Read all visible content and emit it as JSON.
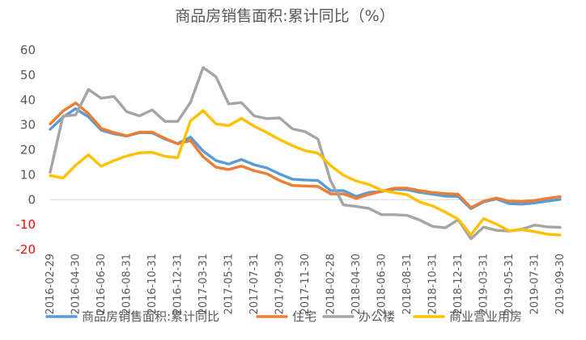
{
  "chart_data": {
    "type": "line",
    "title": "商品房销售面积:累计同比（%）",
    "xlabel": "",
    "ylabel": "",
    "ylim": [
      -20,
      60
    ],
    "yticks": [
      "60",
      "50",
      "40",
      "30",
      "20",
      "10",
      "0",
      "-10",
      "-20"
    ],
    "negative_tick_color": "#ff0000",
    "grid": false,
    "legend_position": "bottom",
    "x": [
      "2016-02",
      "2016-03",
      "2016-04",
      "2016-05",
      "2016-06",
      "2016-07",
      "2016-08",
      "2016-09",
      "2016-10",
      "2016-11",
      "2016-12",
      "2017-02",
      "2017-03",
      "2017-04",
      "2017-05",
      "2017-06",
      "2017-07",
      "2017-08",
      "2017-09",
      "2017-10",
      "2017-11",
      "2017-12",
      "2018-02",
      "2018-03",
      "2018-04",
      "2018-05",
      "2018-06",
      "2018-07",
      "2018-08",
      "2018-09",
      "2018-10",
      "2018-11",
      "2018-12",
      "2019-02",
      "2019-03",
      "2019-04",
      "2019-05",
      "2019-06",
      "2019-07",
      "2019-08",
      "2019-09"
    ],
    "xtick_labels": [
      {
        "index": 0,
        "label": "2016-02-29"
      },
      {
        "index": 2,
        "label": "2016-04-30"
      },
      {
        "index": 4,
        "label": "2016-06-30"
      },
      {
        "index": 6,
        "label": "2016-08-31"
      },
      {
        "index": 8,
        "label": "2016-10-31"
      },
      {
        "index": 10,
        "label": "2016-12-31"
      },
      {
        "index": 12,
        "label": "2017-03-31"
      },
      {
        "index": 14,
        "label": "2017-05-31"
      },
      {
        "index": 16,
        "label": "2017-07-31"
      },
      {
        "index": 18,
        "label": "2017-09-30"
      },
      {
        "index": 20,
        "label": "2017-11-30"
      },
      {
        "index": 22,
        "label": "2018-02-28"
      },
      {
        "index": 24,
        "label": "2018-04-30"
      },
      {
        "index": 26,
        "label": "2018-06-30"
      },
      {
        "index": 28,
        "label": "2018-08-31"
      },
      {
        "index": 30,
        "label": "2018-10-31"
      },
      {
        "index": 32,
        "label": "2018-12-31"
      },
      {
        "index": 34,
        "label": "2019-03-31"
      },
      {
        "index": 36,
        "label": "2019-05-31"
      },
      {
        "index": 38,
        "label": "2019-07-31"
      },
      {
        "index": 40,
        "label": "2019-09-30"
      }
    ],
    "series": [
      {
        "name": "商品房销售面积:累计同比",
        "color": "#5b9bd5",
        "values": [
          28.2,
          33.1,
          36.5,
          33.2,
          27.9,
          26.4,
          25.5,
          26.9,
          26.8,
          24.3,
          22.5,
          25.1,
          19.5,
          15.7,
          14.3,
          16.1,
          14.0,
          12.7,
          10.3,
          8.2,
          7.9,
          7.7,
          3.6,
          3.6,
          1.3,
          2.9,
          3.3,
          4.2,
          4.0,
          2.9,
          2.2,
          1.4,
          1.3,
          -3.6,
          -0.9,
          0.3,
          -1.6,
          -1.8,
          -1.3,
          -0.6,
          0.1
        ]
      },
      {
        "name": "住宅",
        "color": "#ed7d31",
        "values": [
          30.4,
          35.5,
          38.8,
          34.5,
          28.6,
          26.9,
          25.6,
          27.1,
          27.1,
          24.6,
          22.4,
          23.7,
          17.2,
          13.0,
          12.1,
          13.5,
          11.6,
          10.4,
          7.7,
          5.7,
          5.5,
          5.3,
          2.3,
          2.3,
          0.5,
          2.1,
          3.4,
          4.6,
          4.6,
          3.6,
          2.9,
          2.4,
          2.2,
          -3.2,
          -0.6,
          0.7,
          -0.6,
          -0.7,
          -0.3,
          0.5,
          1.2
        ]
      },
      {
        "name": "办公楼",
        "color": "#a5a5a5",
        "values": [
          11.0,
          33.5,
          34.0,
          44.2,
          40.7,
          41.4,
          35.3,
          33.6,
          36.0,
          31.4,
          31.4,
          39.0,
          53.0,
          49.3,
          38.4,
          38.9,
          33.6,
          32.5,
          32.8,
          28.4,
          27.3,
          24.3,
          7.5,
          -2.1,
          -2.7,
          -3.5,
          -6.0,
          -6.0,
          -6.3,
          -8.2,
          -10.7,
          -11.3,
          -8.0,
          -15.7,
          -11.0,
          -12.3,
          -12.6,
          -11.8,
          -10.2,
          -10.9,
          -11.1
        ]
      },
      {
        "name": "商业营业用房",
        "color": "#ffc000",
        "values": [
          9.7,
          8.7,
          13.8,
          18.0,
          13.4,
          15.7,
          17.5,
          18.8,
          19.0,
          17.4,
          16.8,
          31.6,
          35.7,
          30.4,
          29.7,
          32.6,
          29.5,
          26.9,
          24.1,
          21.7,
          19.6,
          18.7,
          13.7,
          9.8,
          7.5,
          6.1,
          3.8,
          2.8,
          2.0,
          -1.0,
          -2.5,
          -5.0,
          -7.8,
          -14.1,
          -7.6,
          -9.8,
          -12.5,
          -12.0,
          -12.8,
          -13.8,
          -14.2
        ]
      }
    ]
  }
}
